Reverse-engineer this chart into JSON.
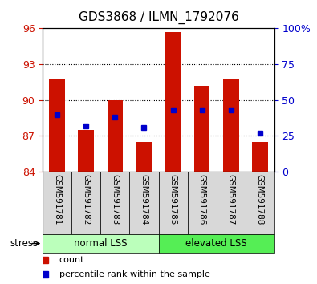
{
  "title": "GDS3868 / ILMN_1792076",
  "samples": [
    "GSM591781",
    "GSM591782",
    "GSM591783",
    "GSM591784",
    "GSM591785",
    "GSM591786",
    "GSM591787",
    "GSM591788"
  ],
  "bar_bottoms": [
    84,
    84,
    84,
    84,
    84,
    84,
    84,
    84
  ],
  "bar_tops": [
    91.8,
    87.5,
    90.0,
    86.5,
    95.7,
    91.2,
    91.8,
    86.5
  ],
  "percentile_ranks": [
    40,
    32,
    38,
    31,
    43,
    43,
    43,
    27
  ],
  "ylim_left": [
    84,
    96
  ],
  "ylim_right": [
    0,
    100
  ],
  "yticks_left": [
    84,
    87,
    90,
    93,
    96
  ],
  "yticks_right": [
    0,
    25,
    50,
    75,
    100
  ],
  "group_labels": [
    "normal LSS",
    "elevated LSS"
  ],
  "group_colors": [
    "#bbffbb",
    "#55ee55"
  ],
  "bar_color": "#cc1100",
  "dot_color": "#0000cc",
  "legend_count_label": "count",
  "legend_pct_label": "percentile rank within the sample",
  "stress_label": "stress",
  "title_fontsize": 11,
  "axis_label_color_left": "#cc1100",
  "axis_label_color_right": "#0000cc",
  "bg_color": "#ffffff",
  "plot_bg": "#ffffff",
  "grid_color": "#000000",
  "xtick_bg": "#d8d8d8",
  "bar_width": 0.55
}
